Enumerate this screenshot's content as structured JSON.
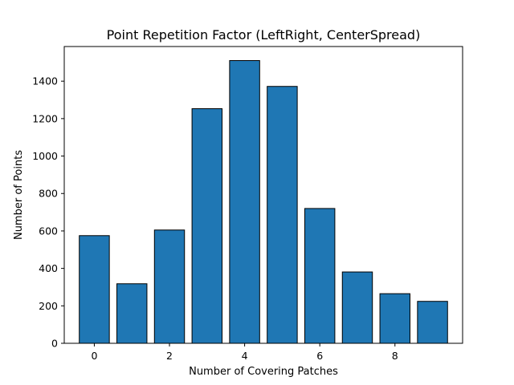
{
  "chart_data": {
    "type": "bar",
    "title": "Point Repetition Factor (LeftRight, CenterSpread)",
    "xlabel": "Number of Covering Patches",
    "ylabel": "Number of Points",
    "x": [
      0,
      1,
      2,
      3,
      4,
      5,
      6,
      7,
      8,
      9
    ],
    "values": [
      575,
      318,
      605,
      1253,
      1510,
      1372,
      720,
      381,
      265,
      224
    ],
    "xlim": [
      -0.8,
      9.8
    ],
    "ylim": [
      0,
      1585
    ],
    "xticks": [
      0,
      2,
      4,
      6,
      8
    ],
    "yticks": [
      0,
      200,
      400,
      600,
      800,
      1000,
      1200,
      1400
    ],
    "bar_color": "#1f77b4",
    "edge_color": "#000000",
    "grid": false,
    "legend": "none"
  }
}
